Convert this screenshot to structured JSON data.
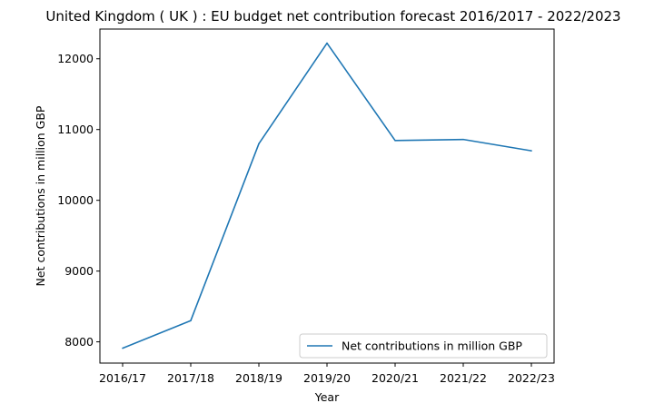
{
  "chart_data": {
    "type": "line",
    "title": "United Kingdom ( UK ) : EU budget net contribution forecast 2016/2017 - 2022/2023",
    "xlabel": "Year",
    "ylabel": "Net contributions in million GBP",
    "categories": [
      "2016/17",
      "2017/18",
      "2018/19",
      "2019/20",
      "2020/21",
      "2021/22",
      "2022/23"
    ],
    "series": [
      {
        "name": "Net contributions in million GBP",
        "values": [
          7910,
          8300,
          10800,
          12220,
          10845,
          10860,
          10700
        ],
        "color": "#1f77b4"
      }
    ],
    "ylim": [
      7700,
      12420
    ],
    "yticks": [
      8000,
      9000,
      10000,
      11000,
      12000
    ],
    "grid": false,
    "legend_position": "lower-right"
  }
}
